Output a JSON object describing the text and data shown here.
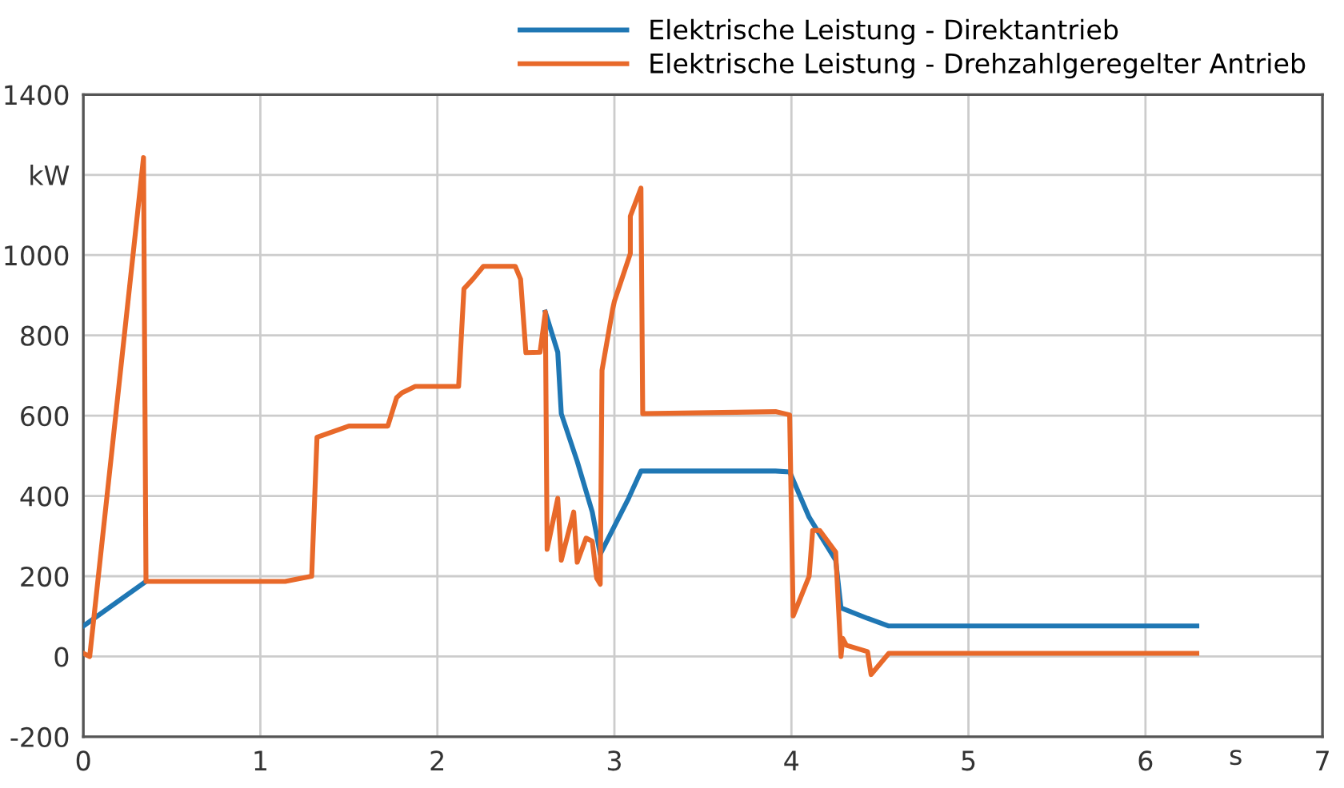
{
  "chart_data": {
    "type": "line",
    "xlabel": "s",
    "xlim": [
      0,
      7
    ],
    "xticks": [
      0,
      1,
      2,
      3,
      4,
      5,
      6,
      7
    ],
    "ylim": [
      -200,
      1400
    ],
    "yticks": [
      -200,
      0,
      200,
      400,
      600,
      800,
      1000,
      {
        "value": 1200,
        "label": "kW"
      },
      1400
    ],
    "grid": true,
    "legend": "top right",
    "marker": "none",
    "line_style": "solid",
    "series": [
      {
        "name": "Elektrische Leistung - Direktantrieb",
        "color": "#1f77b4",
        "x": [
          0,
          0.354,
          1.5,
          2.61,
          2.68,
          2.7,
          2.79,
          2.875,
          2.92,
          3.08,
          3.15,
          3.91,
          3.99,
          4.1,
          4.25,
          4.28,
          4.43,
          4.55,
          6.29
        ],
        "values": [
          76,
          187,
          null,
          858,
          758,
          605,
          486,
          360,
          255,
          394,
          462,
          462,
          460,
          347,
          240,
          121,
          95,
          76,
          76
        ]
      },
      {
        "name": "Elektrische Leistung - Drehzahlgeregelter Antrieb",
        "color": "#e8692a",
        "x": [
          0,
          0.036,
          0.34,
          0.354,
          1.14,
          1.29,
          1.32,
          1.5,
          1.72,
          1.77,
          1.8,
          1.875,
          2.12,
          2.15,
          2.2,
          2.26,
          2.44,
          2.47,
          2.5,
          2.58,
          2.61,
          2.62,
          2.68,
          2.7,
          2.77,
          2.79,
          2.84,
          2.875,
          2.9,
          2.92,
          2.93,
          2.99,
          3.0,
          3.09,
          3.09,
          3.15,
          3.16,
          3.91,
          3.99,
          4.01,
          4.1,
          4.12,
          4.16,
          4.25,
          4.28,
          4.29,
          4.31,
          4.43,
          4.45,
          4.55,
          6.29
        ],
        "values": [
          8,
          0,
          1243,
          187,
          187,
          200,
          546,
          574,
          574,
          645,
          657,
          673,
          673,
          916,
          940,
          972,
          972,
          940,
          757,
          758,
          858,
          267,
          394,
          240,
          360,
          235,
          295,
          287,
          195,
          180,
          713,
          865,
          885,
          1004,
          1097,
          1167,
          605,
          610,
          602,
          101,
          200,
          314,
          314,
          260,
          0,
          45,
          28,
          12,
          -45,
          8,
          8
        ]
      }
    ]
  }
}
